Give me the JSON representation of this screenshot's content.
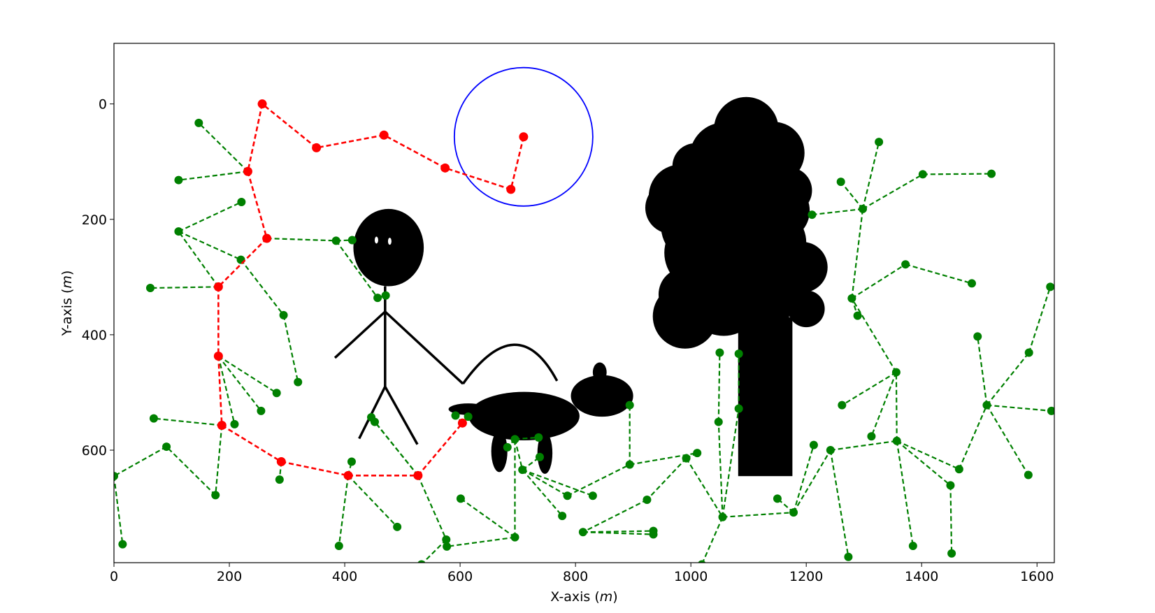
{
  "chart_data": {
    "type": "scatter",
    "xlabel": "X-axis",
    "xlabel_unit": "m",
    "ylabel": "Y-axis",
    "ylabel_unit": "m",
    "xlim": [
      0,
      1630
    ],
    "ylim": [
      795,
      -105
    ],
    "y_inverted": true,
    "x_ticks": [
      0,
      200,
      400,
      600,
      800,
      1000,
      1200,
      1400,
      1600
    ],
    "y_ticks": [
      0,
      200,
      400,
      600
    ],
    "grid": false,
    "colors": {
      "tree": "#008000",
      "path": "#ff0000",
      "goal": "#0000ff",
      "obstacle": "#000000"
    },
    "goal_circle": {
      "cx": 710,
      "cy": 57,
      "r": 120
    },
    "path": [
      [
        710,
        57
      ],
      [
        688,
        148
      ],
      [
        574,
        111
      ],
      [
        468,
        54
      ],
      [
        351,
        76
      ],
      [
        257,
        0
      ],
      [
        232,
        117
      ],
      [
        265,
        233
      ],
      [
        181,
        317
      ],
      [
        181,
        437
      ],
      [
        187,
        557
      ],
      [
        290,
        620
      ],
      [
        406,
        644
      ],
      [
        527,
        644
      ],
      [
        604,
        553
      ]
    ],
    "tree_edges": [
      [
        [
          232,
          117
        ],
        [
          147,
          33
        ]
      ],
      [
        [
          232,
          117
        ],
        [
          112,
          132
        ]
      ],
      [
        [
          265,
          233
        ],
        [
          385,
          237
        ]
      ],
      [
        [
          385,
          237
        ],
        [
          413,
          236
        ]
      ],
      [
        [
          385,
          237
        ],
        [
          457,
          336
        ]
      ],
      [
        [
          457,
          336
        ],
        [
          471,
          332
        ]
      ],
      [
        [
          181,
          317
        ],
        [
          63,
          319
        ]
      ],
      [
        [
          181,
          317
        ],
        [
          112,
          221
        ]
      ],
      [
        [
          112,
          221
        ],
        [
          221,
          170
        ]
      ],
      [
        [
          112,
          221
        ],
        [
          220,
          270
        ]
      ],
      [
        [
          220,
          270
        ],
        [
          294,
          366
        ]
      ],
      [
        [
          294,
          366
        ],
        [
          319,
          482
        ]
      ],
      [
        [
          181,
          437
        ],
        [
          282,
          501
        ]
      ],
      [
        [
          181,
          437
        ],
        [
          255,
          532
        ]
      ],
      [
        [
          181,
          437
        ],
        [
          209,
          555
        ]
      ],
      [
        [
          187,
          557
        ],
        [
          69,
          545
        ]
      ],
      [
        [
          187,
          557
        ],
        [
          176,
          678
        ]
      ],
      [
        [
          176,
          678
        ],
        [
          91,
          594
        ]
      ],
      [
        [
          91,
          594
        ],
        [
          0,
          645
        ]
      ],
      [
        [
          0,
          645
        ],
        [
          15,
          763
        ]
      ],
      [
        [
          290,
          620
        ],
        [
          287,
          651
        ]
      ],
      [
        [
          406,
          644
        ],
        [
          412,
          620
        ]
      ],
      [
        [
          406,
          644
        ],
        [
          390,
          766
        ]
      ],
      [
        [
          406,
          644
        ],
        [
          491,
          733
        ]
      ],
      [
        [
          527,
          644
        ],
        [
          452,
          551
        ]
      ],
      [
        [
          527,
          644
        ],
        [
          446,
          543
        ]
      ],
      [
        [
          527,
          644
        ],
        [
          576,
          755
        ]
      ],
      [
        [
          576,
          755
        ],
        [
          533,
          798
        ]
      ],
      [
        [
          604,
          553
        ],
        [
          592,
          540
        ]
      ],
      [
        [
          604,
          553
        ],
        [
          614,
          542
        ]
      ],
      [
        [
          695,
          751
        ],
        [
          695,
          581
        ]
      ],
      [
        [
          695,
          751
        ],
        [
          601,
          684
        ]
      ],
      [
        [
          695,
          751
        ],
        [
          577,
          767
        ]
      ],
      [
        [
          695,
          581
        ],
        [
          682,
          595
        ]
      ],
      [
        [
          695,
          581
        ],
        [
          736,
          578
        ]
      ],
      [
        [
          695,
          581
        ],
        [
          708,
          634
        ]
      ],
      [
        [
          708,
          634
        ],
        [
          738,
          612
        ]
      ],
      [
        [
          708,
          634
        ],
        [
          777,
          714
        ]
      ],
      [
        [
          708,
          634
        ],
        [
          830,
          679
        ]
      ],
      [
        [
          708,
          634
        ],
        [
          786,
          679
        ]
      ],
      [
        [
          786,
          679
        ],
        [
          894,
          625
        ]
      ],
      [
        [
          894,
          625
        ],
        [
          894,
          522
        ]
      ],
      [
        [
          894,
          625
        ],
        [
          1011,
          605
        ]
      ],
      [
        [
          1011,
          605
        ],
        [
          992,
          614
        ]
      ],
      [
        [
          992,
          614
        ],
        [
          1055,
          716
        ]
      ],
      [
        [
          992,
          614
        ],
        [
          924,
          686
        ]
      ],
      [
        [
          924,
          686
        ],
        [
          813,
          742
        ]
      ],
      [
        [
          813,
          742
        ],
        [
          935,
          740
        ]
      ],
      [
        [
          813,
          742
        ],
        [
          935,
          746
        ]
      ],
      [
        [
          1055,
          716
        ],
        [
          1019,
          798
        ]
      ],
      [
        [
          1055,
          716
        ],
        [
          1178,
          708
        ]
      ],
      [
        [
          1178,
          708
        ],
        [
          1150,
          684
        ]
      ],
      [
        [
          1178,
          708
        ],
        [
          1213,
          591
        ]
      ],
      [
        [
          1178,
          708
        ],
        [
          1242,
          600
        ]
      ],
      [
        [
          1242,
          600
        ],
        [
          1357,
          584
        ]
      ],
      [
        [
          1357,
          584
        ],
        [
          1356,
          465
        ]
      ],
      [
        [
          1356,
          465
        ],
        [
          1262,
          522
        ]
      ],
      [
        [
          1356,
          465
        ],
        [
          1313,
          576
        ]
      ],
      [
        [
          1356,
          465
        ],
        [
          1279,
          337
        ]
      ],
      [
        [
          1279,
          337
        ],
        [
          1289,
          367
        ]
      ],
      [
        [
          1279,
          337
        ],
        [
          1372,
          278
        ]
      ],
      [
        [
          1372,
          278
        ],
        [
          1487,
          311
        ]
      ],
      [
        [
          1279,
          337
        ],
        [
          1298,
          182
        ]
      ],
      [
        [
          1298,
          182
        ],
        [
          1326,
          66
        ]
      ],
      [
        [
          1298,
          182
        ],
        [
          1402,
          122
        ]
      ],
      [
        [
          1402,
          122
        ],
        [
          1521,
          121
        ]
      ],
      [
        [
          1298,
          182
        ],
        [
          1260,
          135
        ]
      ],
      [
        [
          1298,
          182
        ],
        [
          1210,
          192
        ]
      ],
      [
        [
          1357,
          584
        ],
        [
          1450,
          661
        ]
      ],
      [
        [
          1450,
          661
        ],
        [
          1452,
          779
        ]
      ],
      [
        [
          1357,
          584
        ],
        [
          1385,
          766
        ]
      ],
      [
        [
          1357,
          584
        ],
        [
          1465,
          633
        ]
      ],
      [
        [
          1465,
          633
        ],
        [
          1513,
          522
        ]
      ],
      [
        [
          1513,
          522
        ],
        [
          1497,
          403
        ]
      ],
      [
        [
          1513,
          522
        ],
        [
          1585,
          643
        ]
      ],
      [
        [
          1513,
          522
        ],
        [
          1625,
          532
        ]
      ],
      [
        [
          1513,
          522
        ],
        [
          1586,
          431
        ]
      ],
      [
        [
          1586,
          431
        ],
        [
          1623,
          317
        ]
      ],
      [
        [
          1055,
          716
        ],
        [
          1048,
          551
        ]
      ],
      [
        [
          1048,
          551
        ],
        [
          1050,
          431
        ]
      ],
      [
        [
          1055,
          716
        ],
        [
          1083,
          528
        ]
      ],
      [
        [
          1083,
          528
        ],
        [
          1083,
          433
        ]
      ],
      [
        [
          1242,
          600
        ],
        [
          1273,
          785
        ]
      ]
    ],
    "obstacles": {
      "person": {
        "head": {
          "cx": 476,
          "cy": 249,
          "rx": 61,
          "ry": 67
        },
        "eyes": [
          [
            455,
            236
          ],
          [
            478,
            238
          ]
        ],
        "lines": [
          [
            [
              470,
              316
            ],
            [
              470,
              490
            ]
          ],
          [
            [
              470,
              360
            ],
            [
              383,
              440
            ]
          ],
          [
            [
              470,
              360
            ],
            [
              605,
              485
            ]
          ],
          [
            [
              470,
              490
            ],
            [
              425,
              580
            ]
          ],
          [
            [
              470,
              490
            ],
            [
              526,
              590
            ]
          ],
          [
            [
              605,
              485
            ],
            [
              700,
              425
            ],
            [
              768,
              480
            ]
          ]
        ]
      },
      "dog": {
        "body": {
          "cx": 711,
          "cy": 541,
          "rx": 96,
          "ry": 42
        },
        "head": {
          "cx": 846,
          "cy": 506,
          "rx": 54,
          "ry": 36
        },
        "ear": {
          "cx": 842,
          "cy": 465,
          "rx": 12,
          "ry": 17
        },
        "tail": {
          "cx": 614,
          "cy": 529,
          "rx": 34,
          "ry": 10
        },
        "legs": [
          {
            "cx": 668,
            "cy": 602,
            "rx": 14,
            "ry": 36
          },
          {
            "cx": 747,
            "cy": 605,
            "rx": 13,
            "ry": 36
          }
        ]
      },
      "tree": {
        "trunk": {
          "x0": 1082,
          "x1": 1176,
          "y0": 370,
          "y1": 645
        },
        "crown": [
          [
            1058,
            92,
            60
          ],
          [
            1096,
            44,
            56
          ],
          [
            1143,
            85,
            54
          ],
          [
            1018,
            210,
            70
          ],
          [
            1104,
            148,
            78
          ],
          [
            1154,
            185,
            52
          ],
          [
            982,
            160,
            55
          ],
          [
            1020,
            258,
            66
          ],
          [
            1078,
            282,
            60
          ],
          [
            1110,
            300,
            48
          ],
          [
            990,
            330,
            46
          ],
          [
            1151,
            322,
            46
          ],
          [
            966,
            180,
            45
          ],
          [
            990,
            368,
            56
          ],
          [
            1057,
            338,
            64
          ],
          [
            1121,
            361,
            50
          ],
          [
            1193,
            283,
            44
          ],
          [
            1200,
            355,
            32
          ],
          [
            1140,
            240,
            60
          ],
          [
            1170,
            150,
            40
          ],
          [
            1008,
            108,
            40
          ]
        ]
      }
    }
  }
}
